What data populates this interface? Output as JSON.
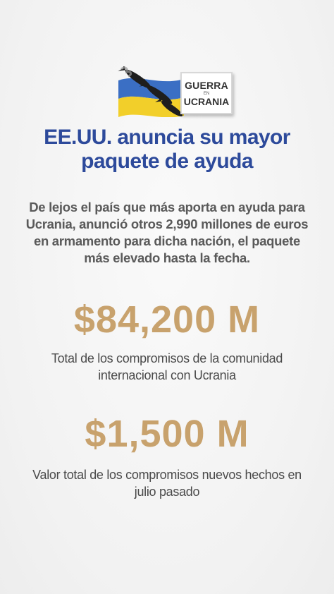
{
  "badge": {
    "line1": "GUERRA",
    "line2": "EN",
    "line3": "UCRANIA"
  },
  "headline": "EE.UU. anuncia su mayor paquete de ayuda",
  "intro": "De lejos el país que más aporta en ayuda para Ucrania, anunció otros 2,990 millones de euros en armamento para dicha nación, el paquete más elevado hasta la fecha.",
  "stats": [
    {
      "value": "$84,200 M",
      "caption": "Total de los compromisos de la comunidad internacional con Ucrania"
    },
    {
      "value": "$1,500 M",
      "caption": "Valor total de los compromisos nuevos hechos en julio pasado"
    }
  ],
  "colors": {
    "headline": "#2d4a9b",
    "figures": "#c8a26d",
    "flag_blue": "#3b6fc4",
    "flag_yellow": "#f2cf2a"
  },
  "icons": [
    "ukraine-flag-icon",
    "missile-icon"
  ]
}
